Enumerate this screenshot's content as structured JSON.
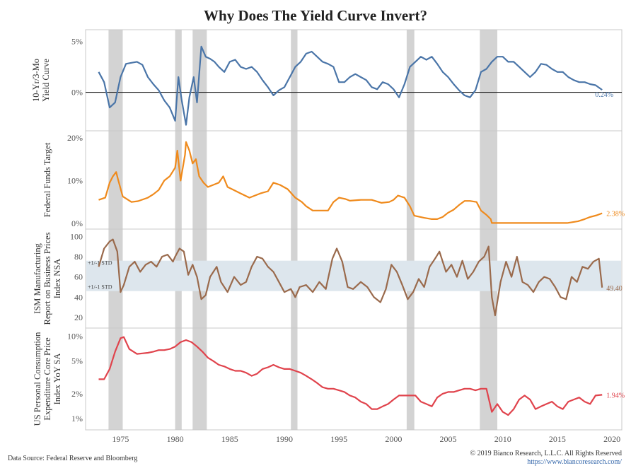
{
  "title": "Why Does The Yield Curve Invert?",
  "footer": {
    "source": "Data Source: Federal Reserve and Bloomberg",
    "copyright": "© 2019 Bianco Research, L.L.C. All Rights Reserved",
    "url": "https://www.biancoresearch.com/"
  },
  "chart_data": {
    "type": "line",
    "x_ticks": [
      1975,
      1980,
      1985,
      1990,
      1995,
      2000,
      2005,
      2010,
      2015,
      2020
    ],
    "xlim": [
      1971.8,
      2020.9
    ],
    "recessions": [
      [
        1973.9,
        1975.2
      ],
      [
        1980.0,
        1980.6
      ],
      [
        1981.6,
        1982.9
      ],
      [
        1990.6,
        1991.2
      ],
      [
        2001.2,
        2001.9
      ],
      [
        2007.9,
        2009.5
      ]
    ],
    "panels": [
      {
        "ylabel": [
          "10-Yr/3-Mo",
          "Yield Curve"
        ],
        "color": "#4a75a8",
        "ylim": [
          -3.3,
          5.6
        ],
        "y_ticks": [
          {
            "v": 5,
            "label": "5%"
          },
          {
            "v": 0,
            "label": "0%"
          }
        ],
        "zero_line": true,
        "end_label": "0.24%",
        "x": [
          1973.0,
          1973.5,
          1974.0,
          1974.5,
          1975.0,
          1975.5,
          1976.0,
          1976.5,
          1977.0,
          1977.5,
          1978.0,
          1978.5,
          1979.0,
          1979.5,
          1980.0,
          1980.3,
          1980.6,
          1981.0,
          1981.3,
          1981.7,
          1982.0,
          1982.4,
          1982.8,
          1983.2,
          1983.6,
          1984.0,
          1984.5,
          1985.0,
          1985.5,
          1986.0,
          1986.5,
          1987.0,
          1987.5,
          1988.0,
          1988.5,
          1989.0,
          1989.5,
          1990.0,
          1990.5,
          1991.0,
          1991.5,
          1992.0,
          1992.5,
          1993.0,
          1993.5,
          1994.0,
          1994.5,
          1995.0,
          1995.5,
          1996.0,
          1996.5,
          1997.0,
          1997.5,
          1998.0,
          1998.5,
          1999.0,
          1999.5,
          2000.0,
          2000.5,
          2001.0,
          2001.5,
          2002.0,
          2002.5,
          2003.0,
          2003.5,
          2004.0,
          2004.5,
          2005.0,
          2005.5,
          2006.0,
          2006.5,
          2007.0,
          2007.5,
          2008.0,
          2008.5,
          2009.0,
          2009.5,
          2010.0,
          2010.5,
          2011.0,
          2011.5,
          2012.0,
          2012.5,
          2013.0,
          2013.5,
          2014.0,
          2014.5,
          2015.0,
          2015.5,
          2016.0,
          2016.5,
          2017.0,
          2017.5,
          2018.0,
          2018.5,
          2019.1
        ],
        "values": [
          2.0,
          1.0,
          -1.5,
          -1.0,
          1.5,
          2.8,
          2.9,
          3.0,
          2.7,
          1.5,
          0.8,
          0.2,
          -0.8,
          -1.5,
          -2.8,
          1.5,
          -0.8,
          -3.2,
          -0.5,
          1.5,
          -1.0,
          4.5,
          3.5,
          3.3,
          3.0,
          2.5,
          2.0,
          3.0,
          3.2,
          2.5,
          2.3,
          2.5,
          2.0,
          1.2,
          0.5,
          -0.3,
          0.2,
          0.5,
          1.5,
          2.5,
          3.0,
          3.8,
          4.0,
          3.5,
          3.0,
          2.8,
          2.5,
          1.0,
          1.0,
          1.5,
          1.8,
          1.5,
          1.2,
          0.5,
          0.3,
          1.0,
          0.8,
          0.3,
          -0.5,
          0.8,
          2.5,
          3.0,
          3.5,
          3.2,
          3.5,
          2.8,
          2.0,
          1.5,
          0.8,
          0.2,
          -0.3,
          -0.5,
          0.2,
          2.0,
          2.3,
          3.0,
          3.5,
          3.5,
          3.0,
          3.0,
          2.5,
          2.0,
          1.5,
          2.0,
          2.8,
          2.7,
          2.3,
          2.0,
          2.0,
          1.5,
          1.2,
          1.0,
          1.0,
          0.8,
          0.7,
          0.24
        ]
      },
      {
        "ylabel": [
          "Federal Funds Target"
        ],
        "color": "#ef8a1c",
        "ylim": [
          -0.5,
          20.8
        ],
        "y_ticks": [
          {
            "v": 20,
            "label": "20%"
          },
          {
            "v": 10,
            "label": "10%"
          },
          {
            "v": 0,
            "label": "0%"
          }
        ],
        "end_label": "2.38%",
        "x": [
          1973.0,
          1973.6,
          1974.0,
          1974.3,
          1974.6,
          1974.8,
          1975.2,
          1976.0,
          1976.6,
          1977.5,
          1978.0,
          1978.5,
          1979.0,
          1979.5,
          1980.0,
          1980.2,
          1980.5,
          1980.9,
          1981.0,
          1981.3,
          1981.6,
          1981.9,
          1982.2,
          1982.6,
          1983.0,
          1984.0,
          1984.4,
          1984.8,
          1985.2,
          1986.0,
          1986.8,
          1987.3,
          1987.8,
          1988.5,
          1989.0,
          1989.6,
          1990.3,
          1991.0,
          1991.6,
          1992.0,
          1992.6,
          1994.0,
          1994.5,
          1995.0,
          1995.6,
          1996.0,
          1997.0,
          1998.0,
          1998.9,
          1999.6,
          2000.0,
          2000.4,
          2001.0,
          2001.5,
          2001.9,
          2002.8,
          2003.5,
          2004.0,
          2004.5,
          2005.0,
          2005.5,
          2006.0,
          2006.5,
          2007.0,
          2007.6,
          2008.0,
          2008.5,
          2008.9,
          2009.0,
          2012.0,
          2015.9,
          2016.9,
          2017.5,
          2018.0,
          2018.6,
          2019.1
        ],
        "values": [
          5.5,
          6.0,
          9.5,
          11.0,
          12.0,
          10.0,
          6.3,
          5.0,
          5.2,
          6.0,
          6.8,
          7.8,
          10.0,
          11.0,
          13.0,
          17.0,
          10.0,
          16.0,
          19.0,
          17.0,
          14.0,
          15.0,
          11.0,
          9.5,
          8.5,
          9.5,
          11.0,
          8.5,
          8.0,
          7.0,
          6.0,
          6.5,
          7.0,
          7.5,
          9.5,
          9.0,
          8.0,
          6.0,
          5.0,
          4.0,
          3.0,
          3.0,
          5.0,
          6.0,
          5.7,
          5.3,
          5.5,
          5.5,
          4.8,
          5.0,
          5.5,
          6.5,
          6.0,
          4.0,
          1.8,
          1.3,
          1.0,
          1.0,
          1.5,
          2.5,
          3.2,
          4.3,
          5.25,
          5.25,
          5.0,
          3.0,
          2.0,
          1.0,
          0.1,
          0.1,
          0.1,
          0.5,
          1.0,
          1.5,
          1.9,
          2.38
        ]
      },
      {
        "ylabel": [
          "ISM Manufacturing",
          "Report on Business Prices",
          "Index NSA"
        ],
        "color": "#9a6a4c",
        "ylim": [
          13,
          103
        ],
        "y_ticks": [
          {
            "v": 100,
            "label": "100"
          },
          {
            "v": 80,
            "label": "80"
          },
          {
            "v": 60,
            "label": "60"
          },
          {
            "v": 40,
            "label": "40"
          },
          {
            "v": 20,
            "label": "20"
          }
        ],
        "band": [
          46,
          76
        ],
        "band_labels": [
          "+1/-1 STD",
          "+1/-1 STD"
        ],
        "end_label": "49.40",
        "x": [
          1973.0,
          1973.5,
          1974.0,
          1974.3,
          1974.7,
          1975.0,
          1975.3,
          1975.8,
          1976.3,
          1976.8,
          1977.3,
          1977.8,
          1978.3,
          1978.8,
          1979.3,
          1979.8,
          1980.0,
          1980.4,
          1980.8,
          1981.2,
          1981.6,
          1982.0,
          1982.4,
          1982.8,
          1983.2,
          1983.8,
          1984.2,
          1984.8,
          1985.4,
          1986.0,
          1986.5,
          1987.0,
          1987.5,
          1988.0,
          1988.5,
          1989.0,
          1989.5,
          1990.0,
          1990.6,
          1991.0,
          1991.4,
          1992.0,
          1992.6,
          1993.2,
          1993.8,
          1994.4,
          1994.8,
          1995.3,
          1995.8,
          1996.3,
          1997.0,
          1997.6,
          1998.2,
          1998.8,
          1999.3,
          1999.8,
          2000.3,
          2000.8,
          2001.3,
          2001.8,
          2002.3,
          2002.8,
          2003.3,
          2003.8,
          2004.2,
          2004.8,
          2005.3,
          2005.8,
          2006.3,
          2006.8,
          2007.3,
          2007.8,
          2008.3,
          2008.7,
          2009.0,
          2009.3,
          2009.8,
          2010.3,
          2010.8,
          2011.3,
          2011.8,
          2012.3,
          2012.8,
          2013.3,
          2013.8,
          2014.3,
          2014.8,
          2015.3,
          2015.8,
          2016.3,
          2016.8,
          2017.3,
          2017.8,
          2018.3,
          2018.8,
          2019.1
        ],
        "values": [
          70,
          88,
          95,
          97,
          85,
          45,
          52,
          70,
          75,
          65,
          72,
          75,
          70,
          80,
          82,
          75,
          80,
          88,
          85,
          62,
          72,
          60,
          38,
          42,
          60,
          70,
          55,
          45,
          60,
          52,
          55,
          70,
          80,
          78,
          70,
          65,
          55,
          45,
          48,
          40,
          50,
          52,
          45,
          55,
          48,
          78,
          88,
          75,
          50,
          48,
          55,
          50,
          40,
          35,
          48,
          72,
          65,
          52,
          38,
          45,
          58,
          50,
          70,
          78,
          85,
          65,
          72,
          60,
          76,
          58,
          65,
          75,
          80,
          90,
          40,
          22,
          55,
          75,
          60,
          80,
          55,
          52,
          45,
          55,
          60,
          58,
          50,
          40,
          38,
          60,
          55,
          70,
          68,
          75,
          78,
          49.4
        ]
      },
      {
        "ylabel": [
          "US Personal Consumption",
          "Expenditure Core Price",
          "Index YoY SA"
        ],
        "color": "#e0434c",
        "log": true,
        "ylim": [
          0.85,
          11.2
        ],
        "y_ticks": [
          {
            "v": 10,
            "label": "10%"
          },
          {
            "v": 5,
            "label": "5%"
          },
          {
            "v": 2,
            "label": "2%"
          },
          {
            "v": 1,
            "label": "1%"
          }
        ],
        "end_label": "1.94%",
        "x": [
          1973.0,
          1973.5,
          1974.0,
          1974.5,
          1975.0,
          1975.3,
          1975.8,
          1976.5,
          1977.0,
          1977.5,
          1978.0,
          1978.5,
          1979.0,
          1979.5,
          1980.0,
          1980.5,
          1981.0,
          1981.5,
          1982.0,
          1982.5,
          1983.0,
          1983.5,
          1984.0,
          1984.5,
          1985.0,
          1985.5,
          1986.0,
          1986.5,
          1987.0,
          1987.5,
          1988.0,
          1988.5,
          1989.0,
          1989.5,
          1990.0,
          1990.5,
          1991.0,
          1991.5,
          1992.0,
          1992.5,
          1993.0,
          1993.5,
          1994.0,
          1994.5,
          1995.0,
          1995.5,
          1996.0,
          1996.5,
          1997.0,
          1997.5,
          1998.0,
          1998.5,
          1999.0,
          1999.5,
          2000.0,
          2000.5,
          2001.0,
          2001.5,
          2002.0,
          2002.5,
          2003.0,
          2003.5,
          2004.0,
          2004.5,
          2005.0,
          2005.5,
          2006.0,
          2006.5,
          2007.0,
          2007.5,
          2008.0,
          2008.5,
          2009.0,
          2009.5,
          2010.0,
          2010.5,
          2011.0,
          2011.5,
          2012.0,
          2012.5,
          2013.0,
          2013.5,
          2014.0,
          2014.5,
          2015.0,
          2015.5,
          2016.0,
          2016.5,
          2017.0,
          2017.5,
          2018.0,
          2018.5,
          2019.1
        ],
        "values": [
          3.0,
          3.0,
          4.0,
          6.5,
          9.5,
          9.8,
          7.0,
          6.1,
          6.2,
          6.3,
          6.5,
          6.8,
          6.8,
          7.0,
          7.5,
          8.5,
          9.0,
          8.5,
          7.5,
          6.5,
          5.5,
          5.0,
          4.5,
          4.3,
          4.0,
          3.8,
          3.8,
          3.6,
          3.3,
          3.5,
          4.0,
          4.2,
          4.5,
          4.2,
          4.0,
          4.0,
          3.8,
          3.6,
          3.3,
          3.0,
          2.7,
          2.4,
          2.3,
          2.3,
          2.2,
          2.1,
          1.9,
          1.8,
          1.6,
          1.5,
          1.3,
          1.3,
          1.4,
          1.5,
          1.7,
          1.9,
          1.9,
          1.9,
          1.9,
          1.6,
          1.5,
          1.4,
          1.8,
          2.0,
          2.1,
          2.1,
          2.2,
          2.3,
          2.3,
          2.2,
          2.3,
          2.3,
          1.2,
          1.5,
          1.2,
          1.1,
          1.3,
          1.7,
          1.9,
          1.7,
          1.3,
          1.4,
          1.5,
          1.6,
          1.4,
          1.3,
          1.6,
          1.7,
          1.8,
          1.6,
          1.5,
          1.9,
          1.94
        ]
      }
    ]
  }
}
